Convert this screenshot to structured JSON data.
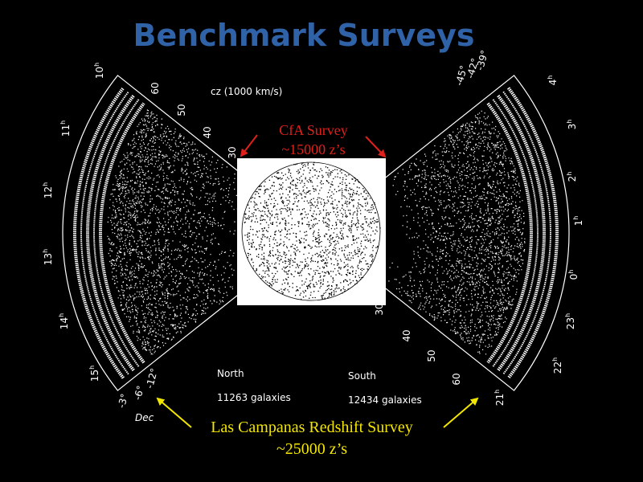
{
  "slide": {
    "title": "Benchmark Surveys",
    "figure": {
      "axis_title": "cz (1000 km/s)",
      "north": {
        "label": "North",
        "count": "11263 galaxies",
        "cz_ticks": [
          "30",
          "40",
          "50",
          "60"
        ],
        "ra_labels": [
          {
            "hour": "10",
            "unit": "h"
          },
          {
            "hour": "11",
            "unit": "h"
          },
          {
            "hour": "12",
            "unit": "h"
          },
          {
            "hour": "13",
            "unit": "h"
          },
          {
            "hour": "14",
            "unit": "h"
          },
          {
            "hour": "15",
            "unit": "h"
          }
        ],
        "dec_labels": [
          "-3°",
          "-6°",
          "-12°"
        ]
      },
      "south": {
        "label": "South",
        "count": "12434 galaxies",
        "cz_ticks": [
          "30",
          "40",
          "50",
          "60"
        ],
        "ra_labels": [
          {
            "hour": "4",
            "unit": "h"
          },
          {
            "hour": "3",
            "unit": "h"
          },
          {
            "hour": "2",
            "unit": "h"
          },
          {
            "hour": "1",
            "unit": "h"
          },
          {
            "hour": "0",
            "unit": "h"
          },
          {
            "hour": "23",
            "unit": "h"
          },
          {
            "hour": "22",
            "unit": "h"
          },
          {
            "hour": "21",
            "unit": "h"
          }
        ],
        "dec_labels": [
          "-45°",
          "-42°",
          "-39°"
        ]
      },
      "dec_title": "Dec"
    },
    "annotations": {
      "cfa": [
        "CfA Survey",
        "~15000 z’s"
      ],
      "lcrs": [
        "Las Campanas Redshift Survey",
        "~25000 z’s"
      ]
    }
  }
}
